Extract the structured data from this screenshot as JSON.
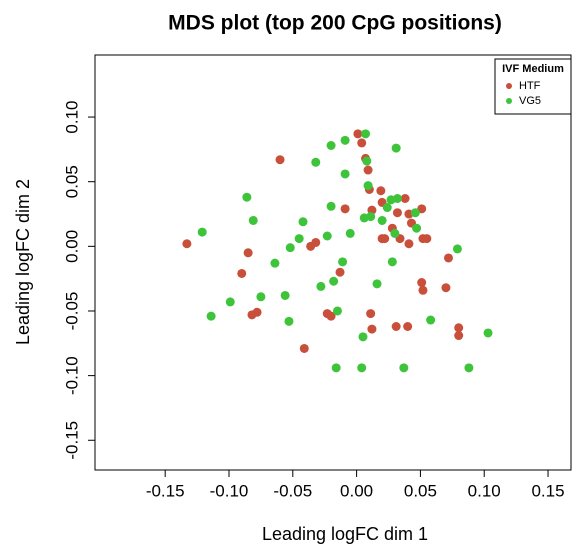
{
  "chart_data": {
    "type": "scatter",
    "title": "MDS plot (top 200 CpG positions)",
    "x_label": "Leading logFC dim 1",
    "y_label": "Leading logFC dim 2",
    "legend_title": "IVF Medium",
    "legend_position": "top-right",
    "xlim": [
      -0.205,
      0.168
    ],
    "ylim": [
      -0.173,
      0.148
    ],
    "xticks": [
      {
        "value": -0.15,
        "label": "-0.15"
      },
      {
        "value": -0.1,
        "label": "-0.10"
      },
      {
        "value": -0.05,
        "label": "-0.05"
      },
      {
        "value": 0,
        "label": "0.00"
      },
      {
        "value": 0.05,
        "label": "0.05"
      },
      {
        "value": 0.1,
        "label": "0.10"
      },
      {
        "value": 0.15,
        "label": "0.15"
      }
    ],
    "yticks": [
      {
        "value": -0.15,
        "label": "-0.15"
      },
      {
        "value": -0.1,
        "label": "-0.10"
      },
      {
        "value": -0.05,
        "label": "-0.05"
      },
      {
        "value": 0,
        "label": "0.00"
      },
      {
        "value": 0.05,
        "label": "0.05"
      },
      {
        "value": 0.1,
        "label": "0.10"
      }
    ],
    "series": [
      {
        "name": "HTF",
        "color": "#c8503a",
        "x": [
          -0.133,
          -0.085,
          -0.082,
          -0.078,
          -0.09,
          -0.06,
          -0.041,
          -0.036,
          -0.032,
          -0.023,
          -0.02,
          -0.013,
          -0.009,
          0.001,
          0.004,
          0.007,
          0.009,
          0.01,
          0.011,
          0.012,
          0.012,
          0.019,
          0.02,
          0.02,
          0.022,
          0.031,
          0.034,
          0.038,
          0.041,
          0.04,
          0.043,
          0.041,
          0.051,
          0.052,
          0.055,
          0.051,
          0.052,
          0.07,
          0.072,
          0.08,
          0.08,
          0.032,
          0.028
        ],
        "y": [
          0.002,
          -0.005,
          -0.053,
          -0.051,
          -0.021,
          0.067,
          -0.079,
          0.0,
          0.003,
          -0.052,
          -0.054,
          -0.02,
          0.029,
          0.087,
          0.08,
          0.068,
          0.059,
          0.044,
          -0.052,
          -0.064,
          0.028,
          0.043,
          0.034,
          0.006,
          0.006,
          -0.062,
          0.006,
          0.037,
          0.025,
          -0.062,
          0.018,
          0.002,
          0.029,
          0.006,
          0.006,
          -0.028,
          -0.034,
          -0.032,
          -0.009,
          -0.063,
          -0.069,
          0.026,
          0.014
        ]
      },
      {
        "name": "VG5",
        "color": "#3ec43a",
        "x": [
          -0.121,
          -0.114,
          -0.099,
          -0.086,
          -0.081,
          -0.075,
          -0.064,
          -0.056,
          -0.053,
          -0.052,
          -0.045,
          -0.042,
          -0.032,
          -0.028,
          -0.023,
          -0.02,
          -0.02,
          -0.018,
          -0.016,
          -0.015,
          -0.011,
          -0.009,
          -0.009,
          -0.005,
          0.004,
          0.005,
          0.006,
          0.007,
          0.008,
          0.009,
          0.011,
          0.016,
          0.02,
          0.024,
          0.027,
          0.031,
          0.03,
          0.028,
          0.032,
          0.037,
          0.046,
          0.047,
          0.058,
          0.079,
          0.103,
          0.088
        ],
        "y": [
          0.011,
          -0.054,
          -0.043,
          0.038,
          0.02,
          -0.039,
          -0.013,
          -0.038,
          -0.058,
          -0.001,
          0.006,
          0.019,
          0.065,
          -0.031,
          0.008,
          0.078,
          0.031,
          -0.027,
          -0.094,
          -0.05,
          -0.012,
          0.056,
          0.082,
          0.01,
          -0.094,
          -0.07,
          0.022,
          0.087,
          0.066,
          0.047,
          0.023,
          -0.029,
          0.02,
          0.03,
          0.036,
          0.076,
          0.01,
          -0.012,
          0.037,
          -0.094,
          0.026,
          0.014,
          -0.057,
          -0.002,
          -0.067,
          -0.094
        ]
      }
    ]
  }
}
